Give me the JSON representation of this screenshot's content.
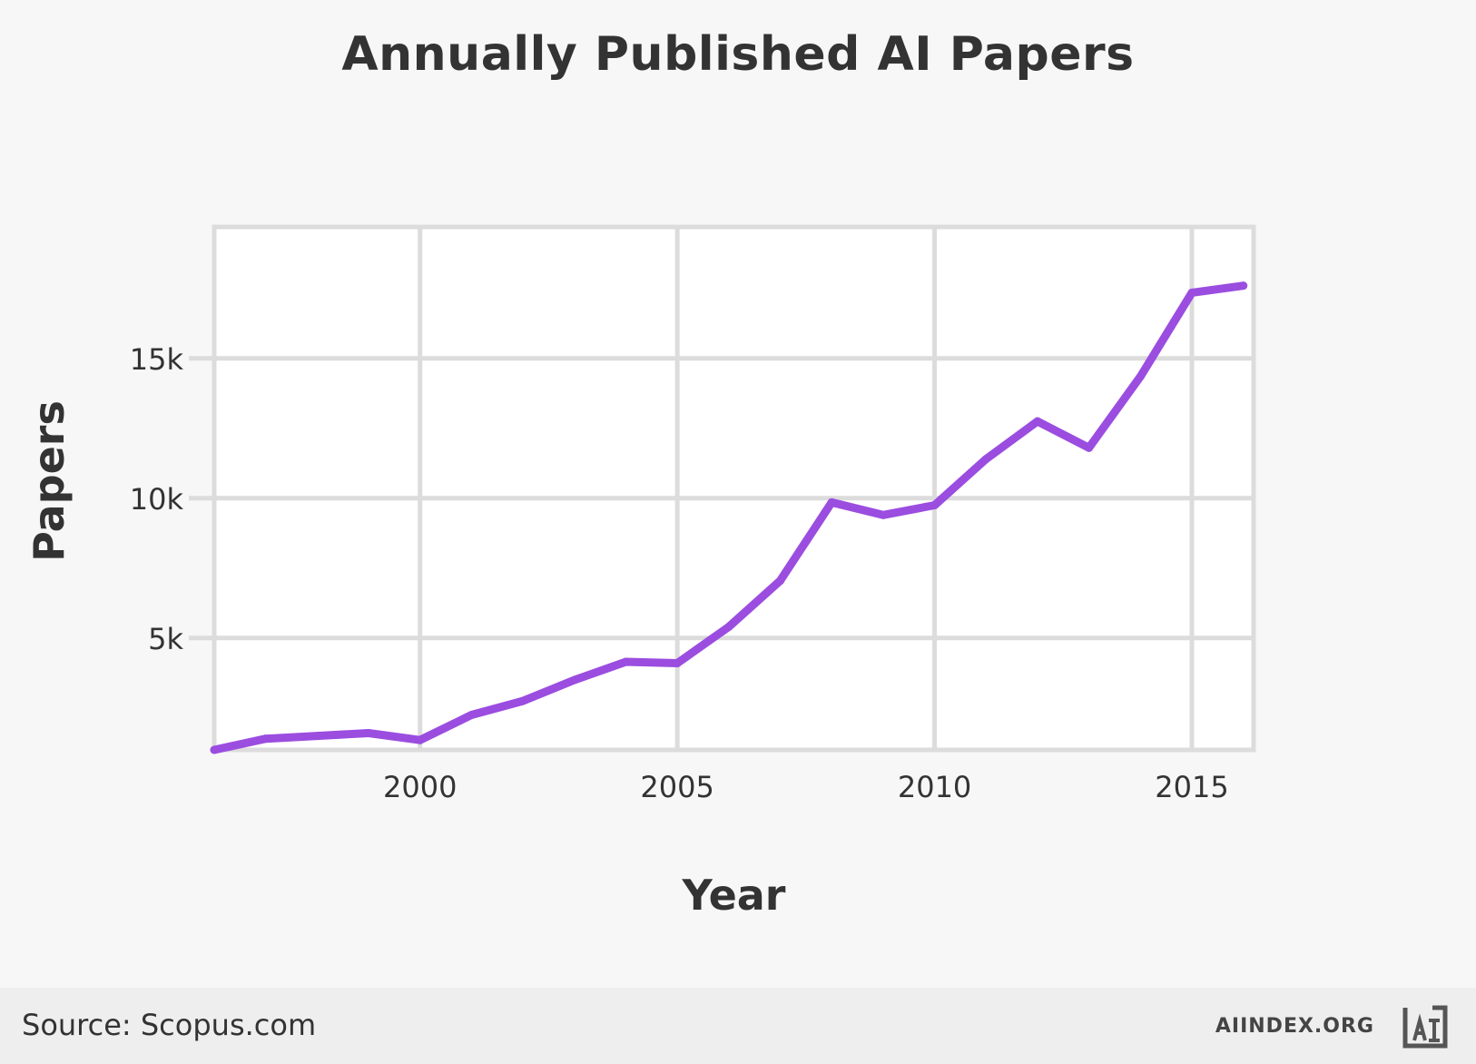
{
  "footer": {
    "source": "Source: Scopus.com",
    "site": "AIINDEX.ORG",
    "logo_icon": "ai-index-logo-icon"
  },
  "colors": {
    "line": "#9b4de0",
    "grid": "#dcdcdc",
    "plot_bg": "#ffffff",
    "page_bg": "#f7f7f7",
    "footer_bg": "#eeeeee",
    "text": "#333333"
  },
  "chart_data": {
    "type": "line",
    "title": "Annually Published AI Papers",
    "xlabel": "Year",
    "ylabel": "Papers",
    "xlim": [
      1996,
      2016.2
    ],
    "ylim": [
      1000,
      19700
    ],
    "xticks": [
      2000,
      2005,
      2010,
      2015
    ],
    "xtick_labels": [
      "2000",
      "2005",
      "2010",
      "2015"
    ],
    "yticks": [
      5000,
      10000,
      15000
    ],
    "ytick_labels": [
      "5k",
      "10k",
      "15k"
    ],
    "grid": true,
    "legend": "none",
    "series": [
      {
        "x": [
          1996,
          1997,
          1998,
          1999,
          2000,
          2001,
          2002,
          2003,
          2004,
          2005,
          2006,
          2007,
          2008,
          2009,
          2010,
          2011,
          2012,
          2013,
          2014,
          2015,
          2016
        ],
        "y": [
          1000,
          1400,
          1500,
          1600,
          1350,
          2250,
          2750,
          3500,
          4150,
          4100,
          5400,
          7050,
          9850,
          9400,
          9750,
          11400,
          12750,
          11800,
          14350,
          17350,
          17600
        ]
      }
    ]
  }
}
